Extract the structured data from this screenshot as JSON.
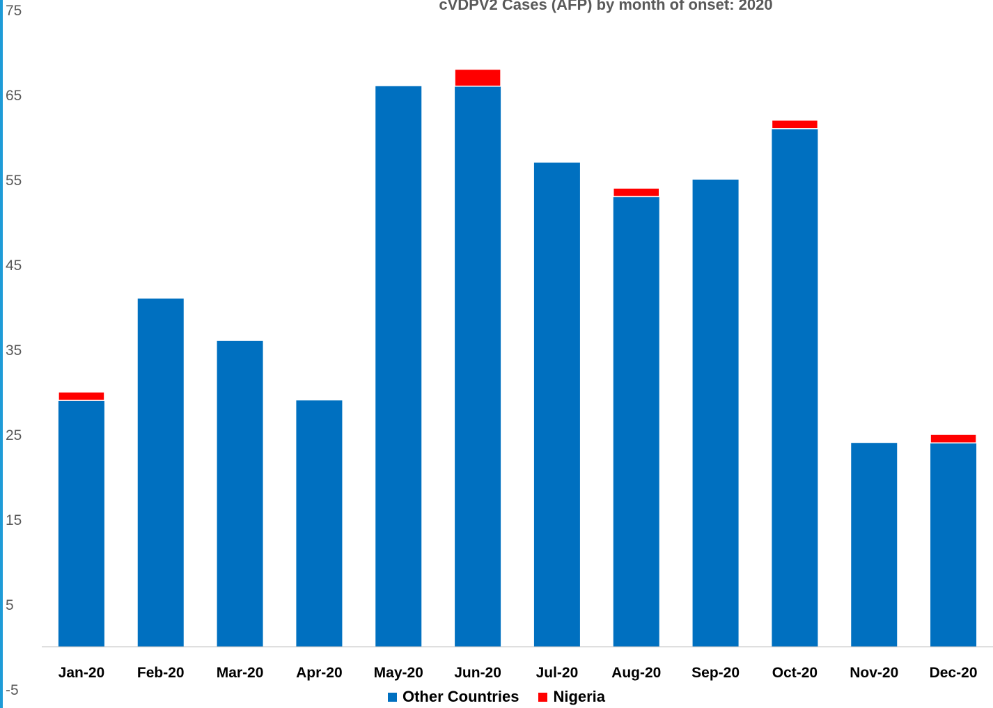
{
  "chart_data": {
    "type": "bar",
    "stacked": true,
    "title": "cVDPV2 Cases (AFP) by month of onset: 2020",
    "categories": [
      "Jan-20",
      "Feb-20",
      "Mar-20",
      "Apr-20",
      "May-20",
      "Jun-20",
      "Jul-20",
      "Aug-20",
      "Sep-20",
      "Oct-20",
      "Nov-20",
      "Dec-20"
    ],
    "series": [
      {
        "name": "Other Countries",
        "color": "#0070C0",
        "values": [
          29,
          41,
          36,
          29,
          66,
          66,
          57,
          53,
          55,
          61,
          24,
          24
        ]
      },
      {
        "name": "Nigeria",
        "color": "#FF0000",
        "values": [
          1,
          0,
          0,
          0,
          0,
          2,
          0,
          1,
          0,
          1,
          0,
          1
        ]
      }
    ],
    "ylim": [
      -5,
      75
    ],
    "yticks": [
      75,
      65,
      55,
      45,
      35,
      25,
      15,
      5,
      -5
    ],
    "xlabel": "",
    "ylabel": "",
    "grid": false,
    "legend_position": "bottom"
  }
}
